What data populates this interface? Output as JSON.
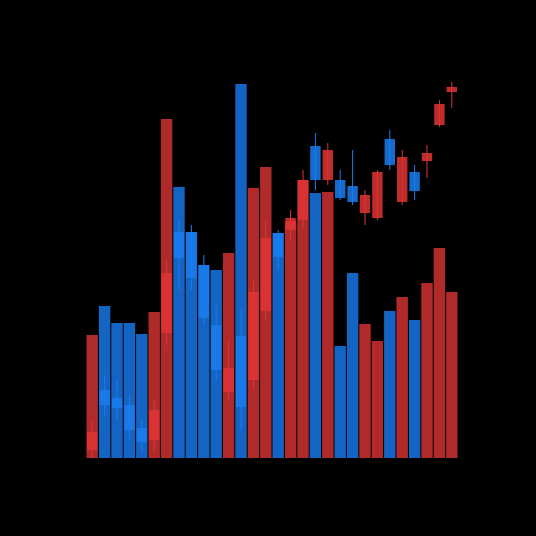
{
  "chart_data": {
    "type": "candlestick",
    "open": [
      8,
      68,
      60,
      53,
      30,
      18,
      125,
      226,
      226,
      193,
      133,
      66,
      122,
      78,
      147,
      225,
      228,
      238,
      312,
      278,
      278,
      272,
      245,
      240,
      319,
      256,
      286,
      297,
      333,
      366
    ],
    "high": [
      38,
      83,
      78,
      63,
      38,
      58,
      198,
      238,
      233,
      203,
      153,
      118,
      148,
      178,
      238,
      228,
      248,
      288,
      325,
      315,
      288,
      308,
      268,
      288,
      328,
      308,
      293,
      313,
      358,
      376
    ],
    "low": [
      0,
      43,
      38,
      18,
      8,
      8,
      113,
      168,
      168,
      133,
      78,
      58,
      28,
      68,
      138,
      188,
      218,
      230,
      268,
      273,
      258,
      253,
      233,
      238,
      288,
      253,
      258,
      280,
      331,
      350
    ],
    "close": [
      26,
      53,
      50,
      28,
      16,
      48,
      185,
      200,
      180,
      140,
      88,
      90,
      51,
      166,
      220,
      201,
      240,
      278,
      278,
      308,
      260,
      256,
      263,
      286,
      293,
      301,
      267,
      305,
      354,
      371
    ],
    "volume": [
      123,
      152,
      135,
      135,
      124,
      146,
      339,
      271,
      226,
      193,
      188,
      205,
      374,
      270,
      291,
      225,
      237,
      278,
      265,
      266,
      112,
      185,
      134,
      117,
      147,
      161,
      138,
      175,
      210,
      166
    ],
    "ylim": [
      0,
      400
    ],
    "up_color": "#e03434",
    "down_color": "#1a7cf0",
    "up_volume_color": "#b02a2a",
    "down_volume_color": "#1464c4",
    "background": "#000000"
  }
}
